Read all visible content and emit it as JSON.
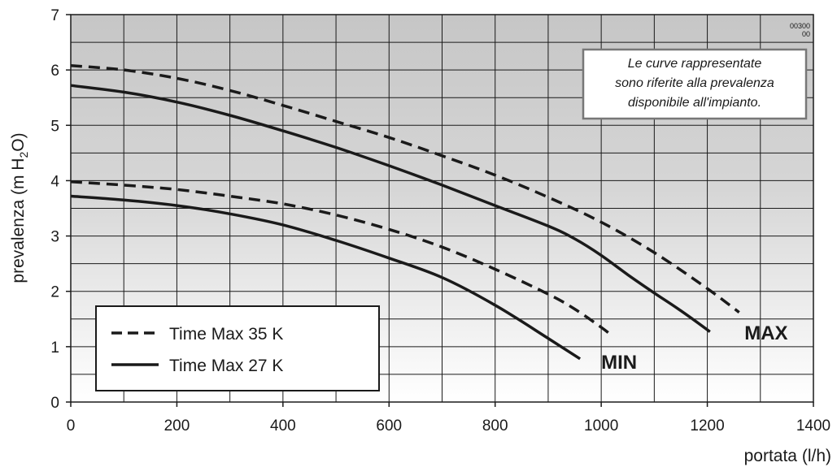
{
  "chart_data": {
    "type": "line",
    "xlabel": "portata (l/h)",
    "ylabel": "prevalenza (m H",
    "ylabel_sub": "2",
    "ylabel_end": "O)",
    "xlim": [
      0,
      1400
    ],
    "ylim": [
      0,
      7
    ],
    "xticks": [
      0,
      200,
      400,
      600,
      800,
      1000,
      1200,
      1400
    ],
    "yticks": [
      0,
      1,
      2,
      3,
      4,
      5,
      6,
      7
    ],
    "grid": true,
    "legend_position": "bottom-left",
    "legend": [
      {
        "label": "Time Max 35 K",
        "style": "dashed"
      },
      {
        "label": "Time Max 27 K",
        "style": "solid"
      }
    ],
    "code_line1": "00300",
    "code_line2": "00",
    "note_lines": [
      "Le curve rappresentate",
      "sono riferite alla prevalenza",
      "disponibile all'impianto."
    ],
    "series": [
      {
        "legend": "Time Max 35 K",
        "setting": "MAX",
        "style": "dashed",
        "x": [
          0,
          100,
          200,
          300,
          400,
          500,
          600,
          700,
          800,
          900,
          1000,
          1100,
          1200,
          1260
        ],
        "y": [
          6.08,
          6.0,
          5.85,
          5.63,
          5.36,
          5.07,
          4.78,
          4.45,
          4.1,
          3.7,
          3.25,
          2.7,
          2.05,
          1.62
        ]
      },
      {
        "legend": "Time Max 27 K",
        "setting": "MAX",
        "style": "solid",
        "x": [
          0,
          100,
          200,
          300,
          400,
          500,
          600,
          700,
          800,
          900,
          950,
          1000,
          1050,
          1100,
          1150,
          1205
        ],
        "y": [
          5.72,
          5.6,
          5.42,
          5.18,
          4.9,
          4.6,
          4.27,
          3.92,
          3.55,
          3.18,
          2.95,
          2.65,
          2.3,
          1.97,
          1.65,
          1.27
        ]
      },
      {
        "legend": "Time Max 35 K",
        "setting": "MIN",
        "style": "dashed",
        "x": [
          0,
          100,
          200,
          300,
          400,
          500,
          600,
          700,
          800,
          900,
          950,
          1000,
          1020
        ],
        "y": [
          3.98,
          3.92,
          3.84,
          3.72,
          3.58,
          3.38,
          3.12,
          2.8,
          2.4,
          1.95,
          1.68,
          1.35,
          1.2
        ]
      },
      {
        "legend": "Time Max 27 K",
        "setting": "MIN",
        "style": "solid",
        "x": [
          0,
          100,
          200,
          300,
          400,
          500,
          600,
          700,
          800,
          900,
          960
        ],
        "y": [
          3.72,
          3.65,
          3.55,
          3.4,
          3.2,
          2.92,
          2.6,
          2.25,
          1.75,
          1.15,
          0.78
        ]
      }
    ],
    "labels": [
      {
        "text": "MAX",
        "x": 1270,
        "y": 1.25
      },
      {
        "text": "MIN",
        "x": 1000,
        "y": 0.72
      }
    ]
  }
}
